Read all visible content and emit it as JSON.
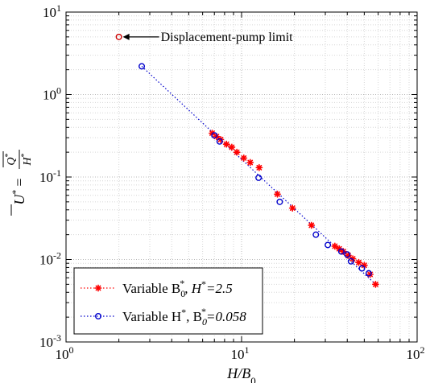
{
  "chart_data": {
    "type": "scatter",
    "xscale": "log",
    "yscale": "log",
    "xlim": [
      1,
      100
    ],
    "ylim": [
      0.001,
      10
    ],
    "grid": true,
    "xlabel": "H/B0",
    "ylabel": "U* = Q*/H*",
    "xtick_labels": [
      {
        "base": "10",
        "exp": "0",
        "value": 1
      },
      {
        "base": "10",
        "exp": "1",
        "value": 10
      },
      {
        "base": "10",
        "exp": "2",
        "value": 100
      }
    ],
    "ytick_labels": [
      {
        "base": "10",
        "exp": "-3",
        "value": 0.001
      },
      {
        "base": "10",
        "exp": "-2",
        "value": 0.01
      },
      {
        "base": "10",
        "exp": "-1",
        "value": 0.1
      },
      {
        "base": "10",
        "exp": "0",
        "value": 1
      },
      {
        "base": "10",
        "exp": "1",
        "value": 10
      }
    ],
    "series": [
      {
        "name": "Variable B0*, H*=2.5",
        "marker": "star",
        "color": "#ff0000",
        "points": [
          [
            6.8,
            0.34
          ],
          [
            7.2,
            0.31
          ],
          [
            7.6,
            0.285
          ],
          [
            8.2,
            0.25
          ],
          [
            8.8,
            0.23
          ],
          [
            9.4,
            0.2
          ],
          [
            10.3,
            0.17
          ],
          [
            11.2,
            0.15
          ],
          [
            12.6,
            0.13
          ],
          [
            16.0,
            0.062
          ],
          [
            19.5,
            0.042
          ],
          [
            25.0,
            0.026
          ],
          [
            34.0,
            0.0145
          ],
          [
            36.0,
            0.0135
          ],
          [
            38.0,
            0.0125
          ],
          [
            40.5,
            0.0112
          ],
          [
            43.0,
            0.0102
          ],
          [
            46.5,
            0.0092
          ],
          [
            50.0,
            0.0085
          ],
          [
            54.0,
            0.0066
          ],
          [
            58.0,
            0.005
          ]
        ]
      },
      {
        "name": "Variable H*, B0*=0.058",
        "marker": "circle",
        "color": "#0000cc",
        "points": [
          [
            2.7,
            2.2
          ],
          [
            7.0,
            0.32
          ],
          [
            7.5,
            0.27
          ],
          [
            12.5,
            0.098
          ],
          [
            16.5,
            0.05
          ],
          [
            26.5,
            0.02
          ],
          [
            31.0,
            0.015
          ],
          [
            37.0,
            0.0125
          ],
          [
            40.0,
            0.0115
          ],
          [
            42.0,
            0.0095
          ],
          [
            48.5,
            0.0078
          ],
          [
            53.0,
            0.0068
          ]
        ]
      }
    ],
    "fit_line": {
      "x": [
        2.7,
        58.0
      ],
      "y": [
        2.2,
        0.005
      ],
      "style": "dotted",
      "color": "#0000cc"
    },
    "annotation": {
      "text": "Displacement-pump limit",
      "point": [
        2.0,
        5.0
      ],
      "marker_color": "#cc0000"
    },
    "legend": {
      "placement": "bottom-left",
      "entries": [
        {
          "prefix": "Variable B",
          "sub": "0",
          "sup": "*",
          "tail": ", H",
          "sup2": "*",
          "value": "=2.5"
        },
        {
          "prefix": "Variable H",
          "sup": "*",
          "tail": ", B",
          "sub2": "0",
          "sup2": "*",
          "value": "=0.058"
        }
      ]
    }
  }
}
